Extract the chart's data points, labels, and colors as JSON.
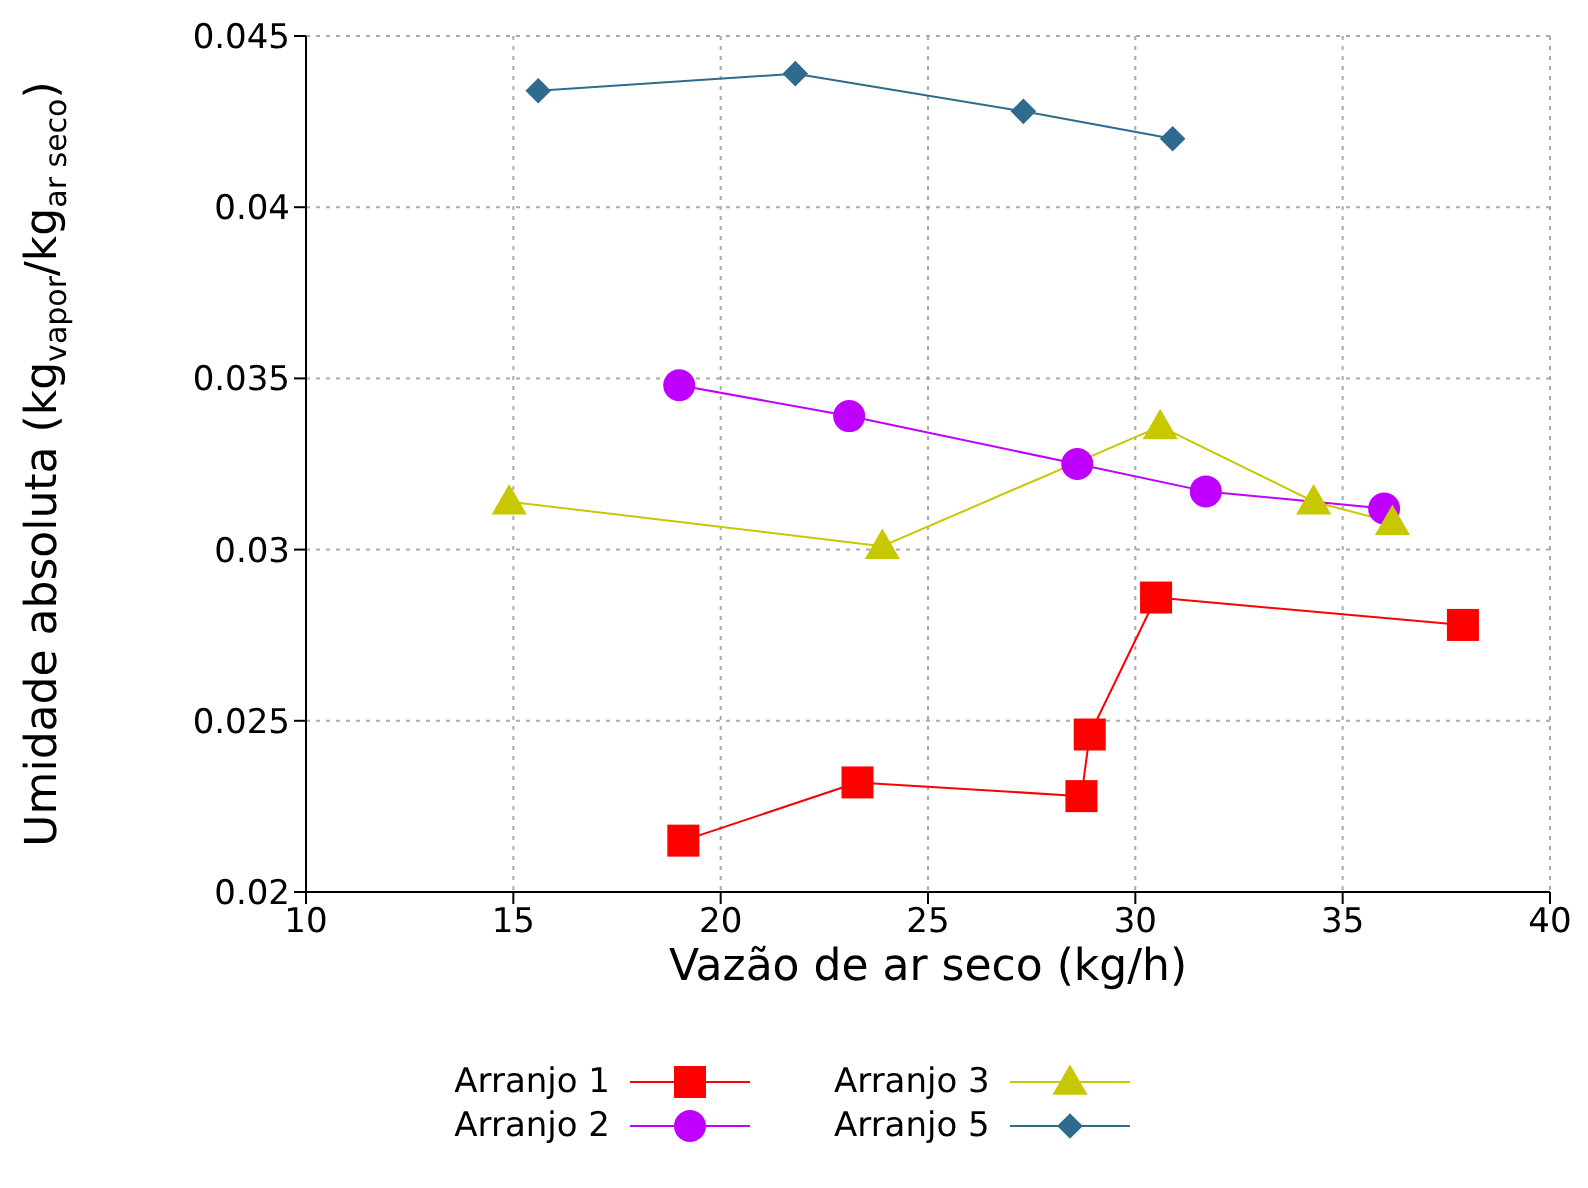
{
  "chart_data": {
    "type": "line",
    "xlabel": "Vazão de ar seco (kg/h)",
    "ylabel": "Umidade absoluta (kg$_{vapor}$/kg$_{ar seco}$)",
    "xlim": [
      10,
      40
    ],
    "xticks": [
      10,
      15,
      20,
      25,
      30,
      35,
      40
    ],
    "ylim": [
      0.02,
      0.045
    ],
    "yticks": [
      0.02,
      0.025,
      0.03,
      0.035,
      0.04,
      0.045
    ],
    "grid": true,
    "legend": "bottom",
    "series": [
      {
        "name": "Arranjo 1",
        "color": "#ff0000",
        "marker": "square",
        "x": [
          19.1,
          23.3,
          28.7,
          28.9,
          30.5,
          37.9
        ],
        "values": [
          0.0215,
          0.0232,
          0.0228,
          0.0246,
          0.0286,
          0.0278
        ]
      },
      {
        "name": "Arranjo 2",
        "color": "#c000ff",
        "marker": "circle",
        "x": [
          19.0,
          23.1,
          28.6,
          31.7,
          36.0
        ],
        "values": [
          0.0348,
          0.0339,
          0.0325,
          0.0317,
          0.0312
        ]
      },
      {
        "name": "Arranjo 3",
        "color": "#c8c800",
        "marker": "triangle",
        "x": [
          14.9,
          23.9,
          30.6,
          34.3,
          36.2
        ],
        "values": [
          0.0314,
          0.0301,
          0.0336,
          0.0314,
          0.0308
        ]
      },
      {
        "name": "Arranjo 5",
        "color": "#2f6a8f",
        "marker": "diamond",
        "x": [
          15.6,
          21.8,
          27.3,
          30.9
        ],
        "values": [
          0.0434,
          0.0439,
          0.0428,
          0.042
        ]
      }
    ]
  }
}
